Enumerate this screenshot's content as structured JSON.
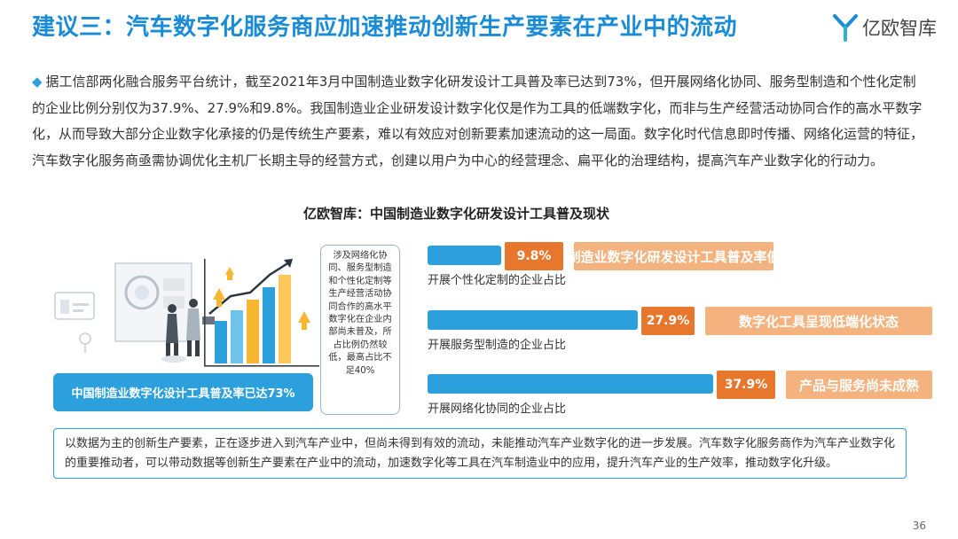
{
  "header": {
    "title": "建议三：汽车数字化服务商应加速推动创新生产要素在产业中的流动",
    "logo_text": "亿欧智库"
  },
  "paragraph": {
    "bullet": "◆",
    "text": "据工信部两化融合服务平台统计，截至2021年3月中国制造业数字化研发设计工具普及率已达到73%，但开展网络化协同、服务型制造和个性化定制的企业比例分别仅为37.9%、27.9%和9.8%。我国制造业企业研发设计数字化仅是作为工具的低端数字化，而非与生产经营活动协同合作的高水平数字化，从而导致大部分企业数字化承接的仍是传统生产要素，难以有效应对创新要素加速流动的这一局面。数字化时代信息即时传播、网络化运营的特征，汽车数字化服务商亟需协调优化主机厂长期主导的经营方式，创建以用户为中心的经营理念、扁平化的治理结构，提高汽车产业数字化的行动力。"
  },
  "illustration": {
    "banner": "中国制造业数字化设计工具普及率已达73%"
  },
  "note_box": {
    "text": "涉及网络化协同、服务型制造和个性化定制等生产经营活动协同合作的高水平数字化在企业内部尚未普及，所占比例仍然较低，最高占比不足40%"
  },
  "chart_data": {
    "type": "bar",
    "orientation": "horizontal",
    "title": "亿欧智库：中国制造业数字化研发设计工具普及现状",
    "categories": [
      "开展个性化定制的企业占比",
      "开展服务型制造的企业占比",
      "开展网络化协同的企业占比"
    ],
    "values": [
      9.8,
      27.9,
      37.9
    ],
    "value_labels": [
      "9.8%",
      "27.9%",
      "37.9%"
    ],
    "tags": [
      "制造业数字化研发设计工具普及率低",
      "数字化工具呈现低端化状态",
      "产品与服务尚未成熟"
    ],
    "unit": "%",
    "bar_color": "#2ba0dd",
    "value_color": "#e8772e",
    "tag_color": "#f4b27e"
  },
  "summary": {
    "text": "以数据为主的创新生产要素，正在逐步进入到汽车产业中，但尚未得到有效的流动，未能推动汽车产业数字化的进一步发展。汽车数字化服务商作为汽车产业数字化的重要推动者，可以带动数据等创新生产要素在产业中的流动，加速数字化等工具在汽车制造业中的应用，提升汽车产业的生产效率，推动数字化升级。"
  },
  "footer": {
    "page_number": "36"
  }
}
